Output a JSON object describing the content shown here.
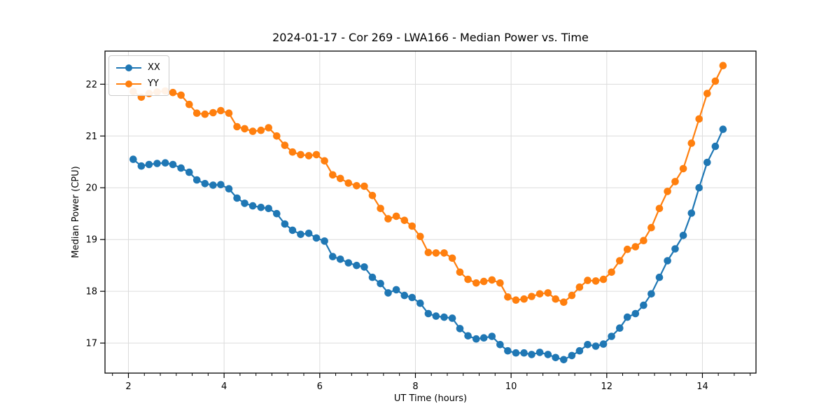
{
  "title": "2024-01-17 - Cor 269 - LWA166 - Median Power vs. Time",
  "chart_data": {
    "type": "line",
    "title": "2024-01-17 - Cor 269 - LWA166 - Median Power vs. Time",
    "xlabel": "UT Time (hours)",
    "ylabel": "Median Power (CPU)",
    "xlim": [
      1.51,
      15.12
    ],
    "ylim": [
      16.42,
      22.64
    ],
    "x_ticks": [
      2,
      4,
      6,
      8,
      10,
      12,
      14
    ],
    "y_ticks": [
      17,
      18,
      19,
      20,
      21,
      22
    ],
    "x_minor_step": 0.3333,
    "grid": true,
    "grid_color": "#dcdcdc",
    "legend_position": "upper left",
    "marker": "circle",
    "x": [
      2.1,
      2.27,
      2.43,
      2.6,
      2.77,
      2.93,
      3.1,
      3.27,
      3.43,
      3.6,
      3.77,
      3.93,
      4.1,
      4.27,
      4.43,
      4.6,
      4.77,
      4.93,
      5.1,
      5.27,
      5.43,
      5.6,
      5.77,
      5.93,
      6.1,
      6.27,
      6.43,
      6.6,
      6.77,
      6.93,
      7.1,
      7.27,
      7.43,
      7.6,
      7.77,
      7.93,
      8.1,
      8.27,
      8.43,
      8.6,
      8.77,
      8.93,
      9.1,
      9.27,
      9.43,
      9.6,
      9.77,
      9.93,
      10.1,
      10.27,
      10.43,
      10.6,
      10.77,
      10.93,
      11.1,
      11.27,
      11.43,
      11.6,
      11.77,
      11.93,
      12.1,
      12.27,
      12.43,
      12.6,
      12.77,
      12.93,
      13.1,
      13.27,
      13.43,
      13.6,
      13.77,
      13.93,
      14.1,
      14.27,
      14.43
    ],
    "series": [
      {
        "name": "XX",
        "color": "#1f77b4",
        "values": [
          20.55,
          20.42,
          20.45,
          20.47,
          20.48,
          20.45,
          20.38,
          20.3,
          20.15,
          20.08,
          20.05,
          20.06,
          19.98,
          19.8,
          19.7,
          19.65,
          19.62,
          19.6,
          19.5,
          19.3,
          19.18,
          19.1,
          19.12,
          19.03,
          18.97,
          18.67,
          18.62,
          18.55,
          18.5,
          18.47,
          18.27,
          18.15,
          17.97,
          18.03,
          17.92,
          17.88,
          17.77,
          17.57,
          17.52,
          17.5,
          17.48,
          17.28,
          17.14,
          17.08,
          17.1,
          17.13,
          16.97,
          16.85,
          16.81,
          16.81,
          16.78,
          16.82,
          16.78,
          16.72,
          16.68,
          16.76,
          16.85,
          16.97,
          16.94,
          16.98,
          17.13,
          17.29,
          17.5,
          17.57,
          17.73,
          17.95,
          18.27,
          18.59,
          18.82,
          19.08,
          19.51,
          20.0,
          20.49,
          20.8,
          21.13
        ]
      },
      {
        "name": "YY",
        "color": "#ff7f0e",
        "values": [
          21.86,
          21.75,
          21.82,
          21.85,
          21.87,
          21.84,
          21.79,
          21.61,
          21.44,
          21.42,
          21.45,
          21.49,
          21.44,
          21.18,
          21.14,
          21.09,
          21.11,
          21.16,
          21.0,
          20.82,
          20.69,
          20.64,
          20.62,
          20.64,
          20.52,
          20.25,
          20.18,
          20.09,
          20.04,
          20.03,
          19.85,
          19.6,
          19.4,
          19.45,
          19.37,
          19.26,
          19.06,
          18.75,
          18.74,
          18.74,
          18.64,
          18.37,
          18.23,
          18.16,
          18.19,
          18.22,
          18.16,
          17.89,
          17.83,
          17.85,
          17.9,
          17.95,
          17.97,
          17.85,
          17.79,
          17.92,
          18.08,
          18.21,
          18.2,
          18.23,
          18.37,
          18.59,
          18.81,
          18.86,
          18.98,
          19.23,
          19.6,
          19.93,
          20.12,
          20.37,
          20.86,
          21.33,
          21.82,
          22.06,
          22.36
        ]
      }
    ]
  }
}
